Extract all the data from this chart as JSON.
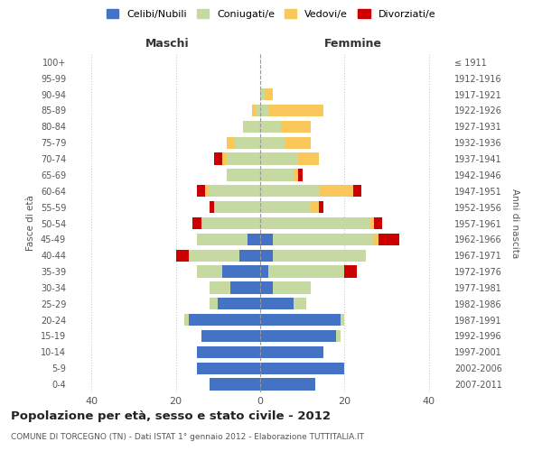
{
  "age_groups": [
    "0-4",
    "5-9",
    "10-14",
    "15-19",
    "20-24",
    "25-29",
    "30-34",
    "35-39",
    "40-44",
    "45-49",
    "50-54",
    "55-59",
    "60-64",
    "65-69",
    "70-74",
    "75-79",
    "80-84",
    "85-89",
    "90-94",
    "95-99",
    "100+"
  ],
  "birth_years": [
    "2007-2011",
    "2002-2006",
    "1997-2001",
    "1992-1996",
    "1987-1991",
    "1982-1986",
    "1977-1981",
    "1972-1976",
    "1967-1971",
    "1962-1966",
    "1957-1961",
    "1952-1956",
    "1947-1951",
    "1942-1946",
    "1937-1941",
    "1932-1936",
    "1927-1931",
    "1922-1926",
    "1917-1921",
    "1912-1916",
    "≤ 1911"
  ],
  "male": {
    "celibi": [
      12,
      15,
      15,
      14,
      17,
      10,
      7,
      9,
      5,
      3,
      0,
      0,
      0,
      0,
      0,
      0,
      0,
      0,
      0,
      0,
      0
    ],
    "coniugati": [
      0,
      0,
      0,
      0,
      1,
      2,
      5,
      6,
      12,
      12,
      14,
      11,
      12,
      8,
      8,
      6,
      4,
      1,
      0,
      0,
      0
    ],
    "vedovi": [
      0,
      0,
      0,
      0,
      0,
      0,
      0,
      0,
      0,
      0,
      0,
      0,
      1,
      0,
      1,
      2,
      0,
      1,
      0,
      0,
      0
    ],
    "divorziati": [
      0,
      0,
      0,
      0,
      0,
      0,
      0,
      0,
      3,
      0,
      2,
      1,
      2,
      0,
      2,
      0,
      0,
      0,
      0,
      0,
      0
    ]
  },
  "female": {
    "nubili": [
      13,
      20,
      15,
      18,
      19,
      8,
      3,
      2,
      3,
      3,
      0,
      0,
      0,
      0,
      0,
      0,
      0,
      0,
      0,
      0,
      0
    ],
    "coniugate": [
      0,
      0,
      0,
      1,
      1,
      3,
      9,
      18,
      22,
      24,
      26,
      12,
      14,
      8,
      9,
      6,
      5,
      2,
      1,
      0,
      0
    ],
    "vedove": [
      0,
      0,
      0,
      0,
      0,
      0,
      0,
      0,
      0,
      1,
      1,
      2,
      8,
      1,
      5,
      6,
      7,
      13,
      2,
      0,
      0
    ],
    "divorziate": [
      0,
      0,
      0,
      0,
      0,
      0,
      0,
      3,
      0,
      5,
      2,
      1,
      2,
      1,
      0,
      0,
      0,
      0,
      0,
      0,
      0
    ]
  },
  "colors": {
    "celibi": "#4472C4",
    "coniugati": "#C5D9A0",
    "vedovi": "#FAC85A",
    "divorziati": "#CC0000"
  },
  "title": "Popolazione per età, sesso e stato civile - 2012",
  "subtitle": "COMUNE DI TORCEGNO (TN) - Dati ISTAT 1° gennaio 2012 - Elaborazione TUTTITALIA.IT",
  "xlabel_left": "Maschi",
  "xlabel_right": "Femmine",
  "ylabel_left": "Fasce di età",
  "ylabel_right": "Anni di nascita",
  "xlim": 45,
  "legend_labels": [
    "Celibi/Nubili",
    "Coniugati/e",
    "Vedovi/e",
    "Divorziati/e"
  ],
  "bg_color": "#ffffff",
  "grid_color": "#cccccc"
}
